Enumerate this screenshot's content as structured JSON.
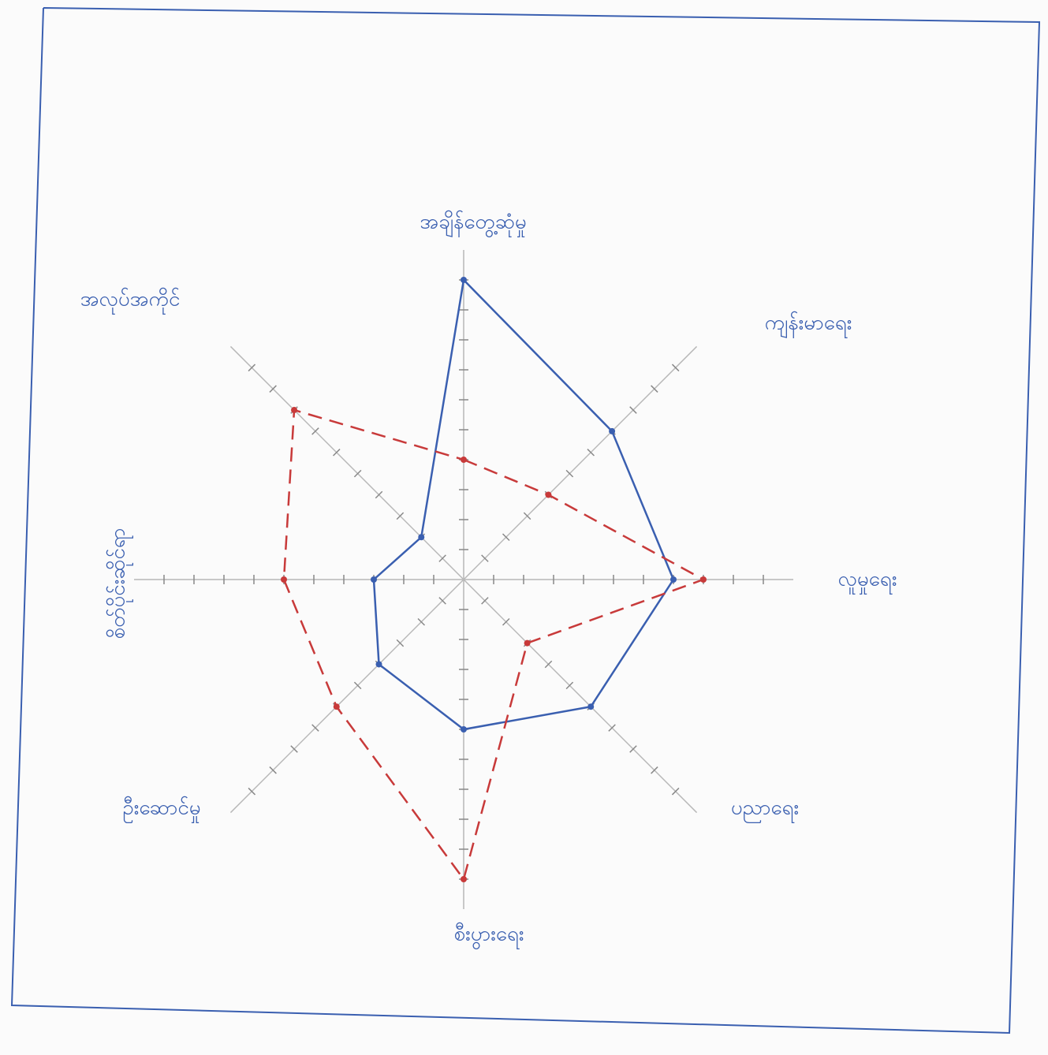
{
  "chart_data": {
    "type": "radar",
    "categories": [
      "အချိန်တွေ့ဆုံမှု",
      "ကျန်းမာရေး",
      "လူမှုရေး",
      "ပညာရေး",
      "စီးပွားရေး",
      "ဦးဆောင်မှု",
      "စိတ်ပိုင်းဆိုင်ရာ",
      "အလုပ်အကိုင်"
    ],
    "rlim": [
      0,
      11
    ],
    "rticks": [
      1,
      2,
      3,
      4,
      5,
      6,
      7,
      8,
      9,
      10
    ],
    "series": [
      {
        "color": "#3a5fb0",
        "dashed": false,
        "values": [
          10,
          7,
          7,
          6,
          5,
          4,
          3,
          2
        ]
      },
      {
        "color": "#c83a3a",
        "dashed": true,
        "values": [
          4,
          4,
          8,
          3,
          10,
          6,
          6,
          8
        ]
      }
    ]
  }
}
